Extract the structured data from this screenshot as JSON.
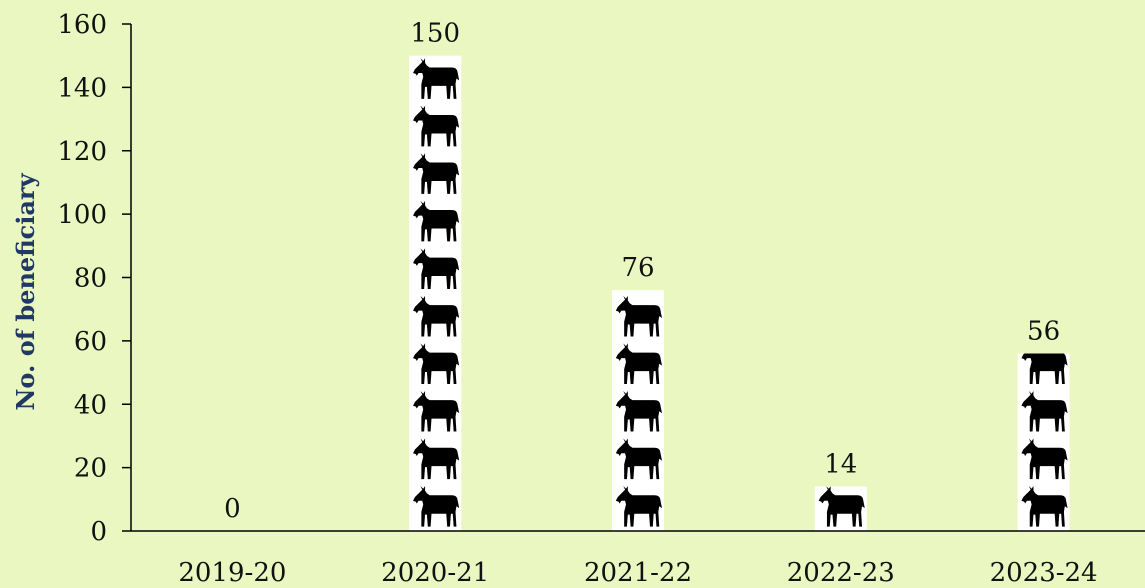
{
  "chart_data": {
    "type": "bar",
    "categories": [
      "2019-20",
      "2020-21",
      "2021-22",
      "2022-23",
      "2023-24"
    ],
    "values": [
      0,
      150,
      76,
      14,
      56
    ],
    "data_labels": [
      "0",
      "150",
      "76",
      "14",
      "56"
    ],
    "title": "",
    "xlabel": "",
    "ylabel": "No. of beneficiary",
    "ylim": [
      0,
      160
    ],
    "yticks": [
      0,
      20,
      40,
      60,
      80,
      100,
      120,
      140,
      160
    ],
    "ytick_labels": [
      "0",
      "20",
      "40",
      "60",
      "80",
      "100",
      "120",
      "140",
      "160"
    ],
    "grid": false,
    "legend": "none",
    "bar_fill": "goat pictogram",
    "icon": "goat-icon",
    "units_per_icon": 15
  },
  "colors": {
    "background": "#ebf7c1",
    "bar_background": "#ffffff",
    "icon": "#000000",
    "axis": "#000000",
    "ylabel": "#1f3864",
    "text": "#111111"
  }
}
